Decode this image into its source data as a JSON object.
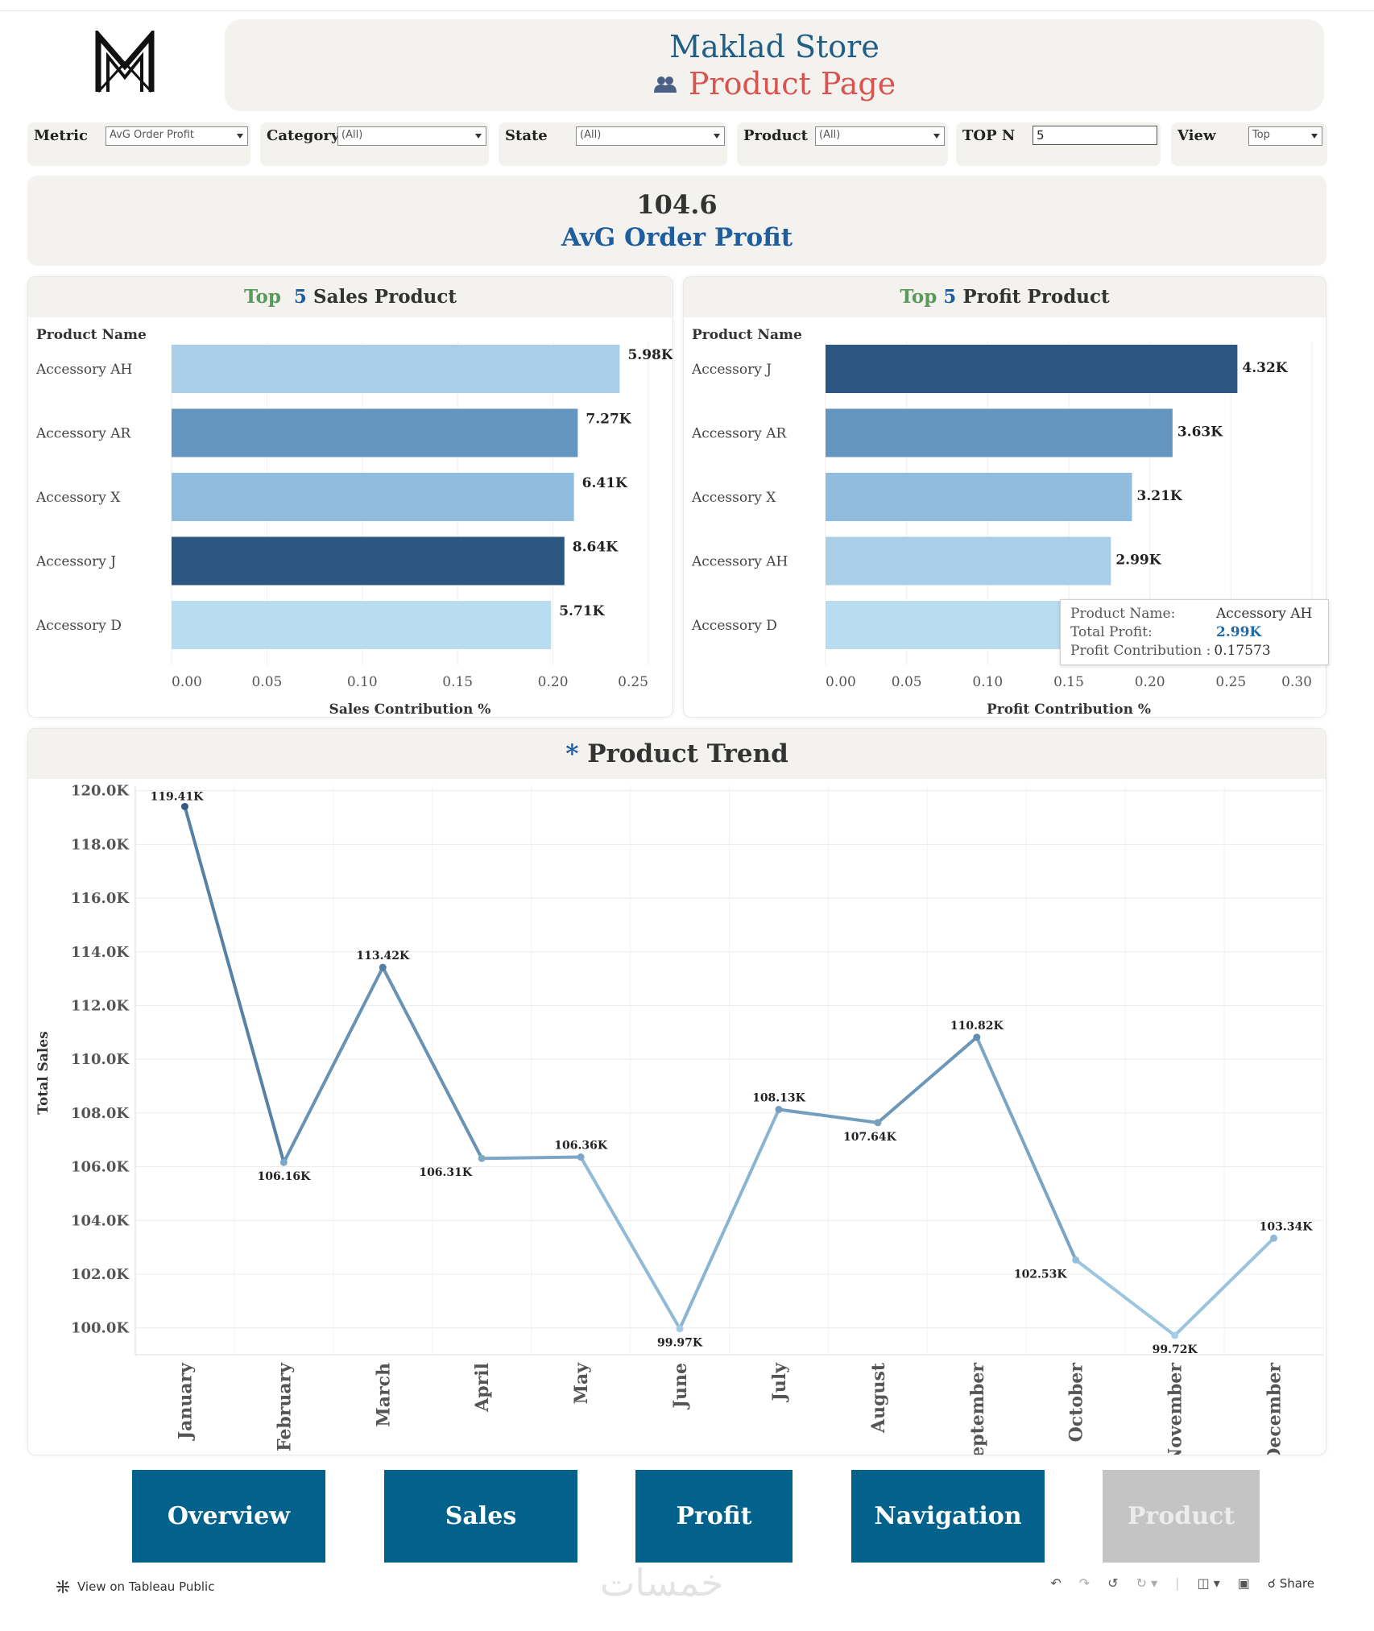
{
  "header": {
    "store_title": "Maklad Store",
    "page_title": "Product Page"
  },
  "filters": [
    {
      "label": "Metric",
      "value": "AvG Order Profit"
    },
    {
      "label": "Category",
      "value": "(All)"
    },
    {
      "label": "State",
      "value": "(All)"
    },
    {
      "label": "Product",
      "value": "(All)"
    },
    {
      "label": "TOP N",
      "value": "5"
    },
    {
      "label": "View",
      "value": "Top"
    }
  ],
  "kpi": {
    "value": "104.6",
    "label": "AvG Order Profit"
  },
  "sales_panel": {
    "title_top": "Top",
    "title_n": "5",
    "title_rest": "Sales Product"
  },
  "profit_panel": {
    "title_top": "Top",
    "title_n": "5",
    "title_rest": "Profit Product"
  },
  "trend_panel": {
    "star": "*",
    "title": "Product Trend"
  },
  "tooltip": {
    "name_label": "Product Name:",
    "name_value": "Accessory AH",
    "profit_label": "Total Profit:",
    "profit_value": "2.99K",
    "contrib_label": "Profit Contribution :",
    "contrib_value": "0.17573"
  },
  "nav": [
    "Overview",
    "Sales",
    "Profit",
    "Navigation",
    "Product"
  ],
  "nav_active": "Product",
  "footer": {
    "view_on": "View on Tableau Public",
    "share": "Share",
    "watermark": "خمسات"
  },
  "colors": {
    "header_blue": "#1f5e86",
    "page_red": "#d9534f",
    "nav_blue": "#03628c",
    "nav_inactive": "#c4c4c4"
  },
  "chart_data": [
    {
      "type": "bar",
      "orientation": "horizontal",
      "title": "Top 5 Sales Product",
      "row_header": "Product Name",
      "categories": [
        "Accessory AH",
        "Accessory AR",
        "Accessory X",
        "Accessory J",
        "Accessory D"
      ],
      "values": [
        0.235,
        0.213,
        0.211,
        0.206,
        0.199
      ],
      "labels": [
        "5.98K",
        "7.27K",
        "6.41K",
        "8.64K",
        "5.71K"
      ],
      "bar_colors": [
        "#a9cfe8",
        "#6595c1",
        "#8fbcdf",
        "#2c5782",
        "#b8dcf0"
      ],
      "xlabel": "Sales Contribution %",
      "xlim": [
        0,
        0.25
      ],
      "xticks": [
        "0.00",
        "0.05",
        "0.10",
        "0.15",
        "0.20",
        "0.25"
      ]
    },
    {
      "type": "bar",
      "orientation": "horizontal",
      "title": "Top 5 Profit Product",
      "row_header": "Product Name",
      "categories": [
        "Accessory J",
        "Accessory AR",
        "Accessory X",
        "Accessory AH",
        "Accessory D"
      ],
      "values": [
        0.254,
        0.214,
        0.189,
        0.176,
        0.172
      ],
      "labels": [
        "4.32K",
        "3.63K",
        "3.21K",
        "2.99K",
        ""
      ],
      "bar_colors": [
        "#2c5782",
        "#6595c1",
        "#8fbcdf",
        "#a9cfe8",
        "#b8dcf0"
      ],
      "xlabel": "Profit Contribution %",
      "xlim": [
        0,
        0.3
      ],
      "xticks": [
        "0.00",
        "0.05",
        "0.10",
        "0.15",
        "0.20",
        "0.25",
        "0.30"
      ]
    },
    {
      "type": "line",
      "title": "Product Trend",
      "ylabel": "Total Sales",
      "ylim": [
        99,
        120.2
      ],
      "yticks": [
        "120.0K",
        "118.0K",
        "116.0K",
        "114.0K",
        "112.0K",
        "110.0K",
        "108.0K",
        "106.0K",
        "104.0K",
        "102.0K",
        "100.0K"
      ],
      "ytick_values": [
        120,
        118,
        116,
        114,
        112,
        110,
        108,
        106,
        104,
        102,
        100
      ],
      "x": [
        "January",
        "February",
        "March",
        "April",
        "May",
        "June",
        "July",
        "August",
        "September",
        "October",
        "November",
        "December"
      ],
      "y": [
        119.41,
        106.16,
        113.42,
        106.31,
        106.36,
        99.97,
        108.13,
        107.64,
        110.82,
        102.53,
        99.72,
        103.34
      ],
      "labels": [
        "119.41K",
        "106.16K",
        "113.42K",
        "106.31K",
        "106.36K",
        "99.97K",
        "108.13K",
        "107.64K",
        "110.82K",
        "102.53K",
        "99.72K",
        "103.34K"
      ],
      "color_scale": [
        "#a8d2ea",
        "#2c5782"
      ]
    }
  ]
}
